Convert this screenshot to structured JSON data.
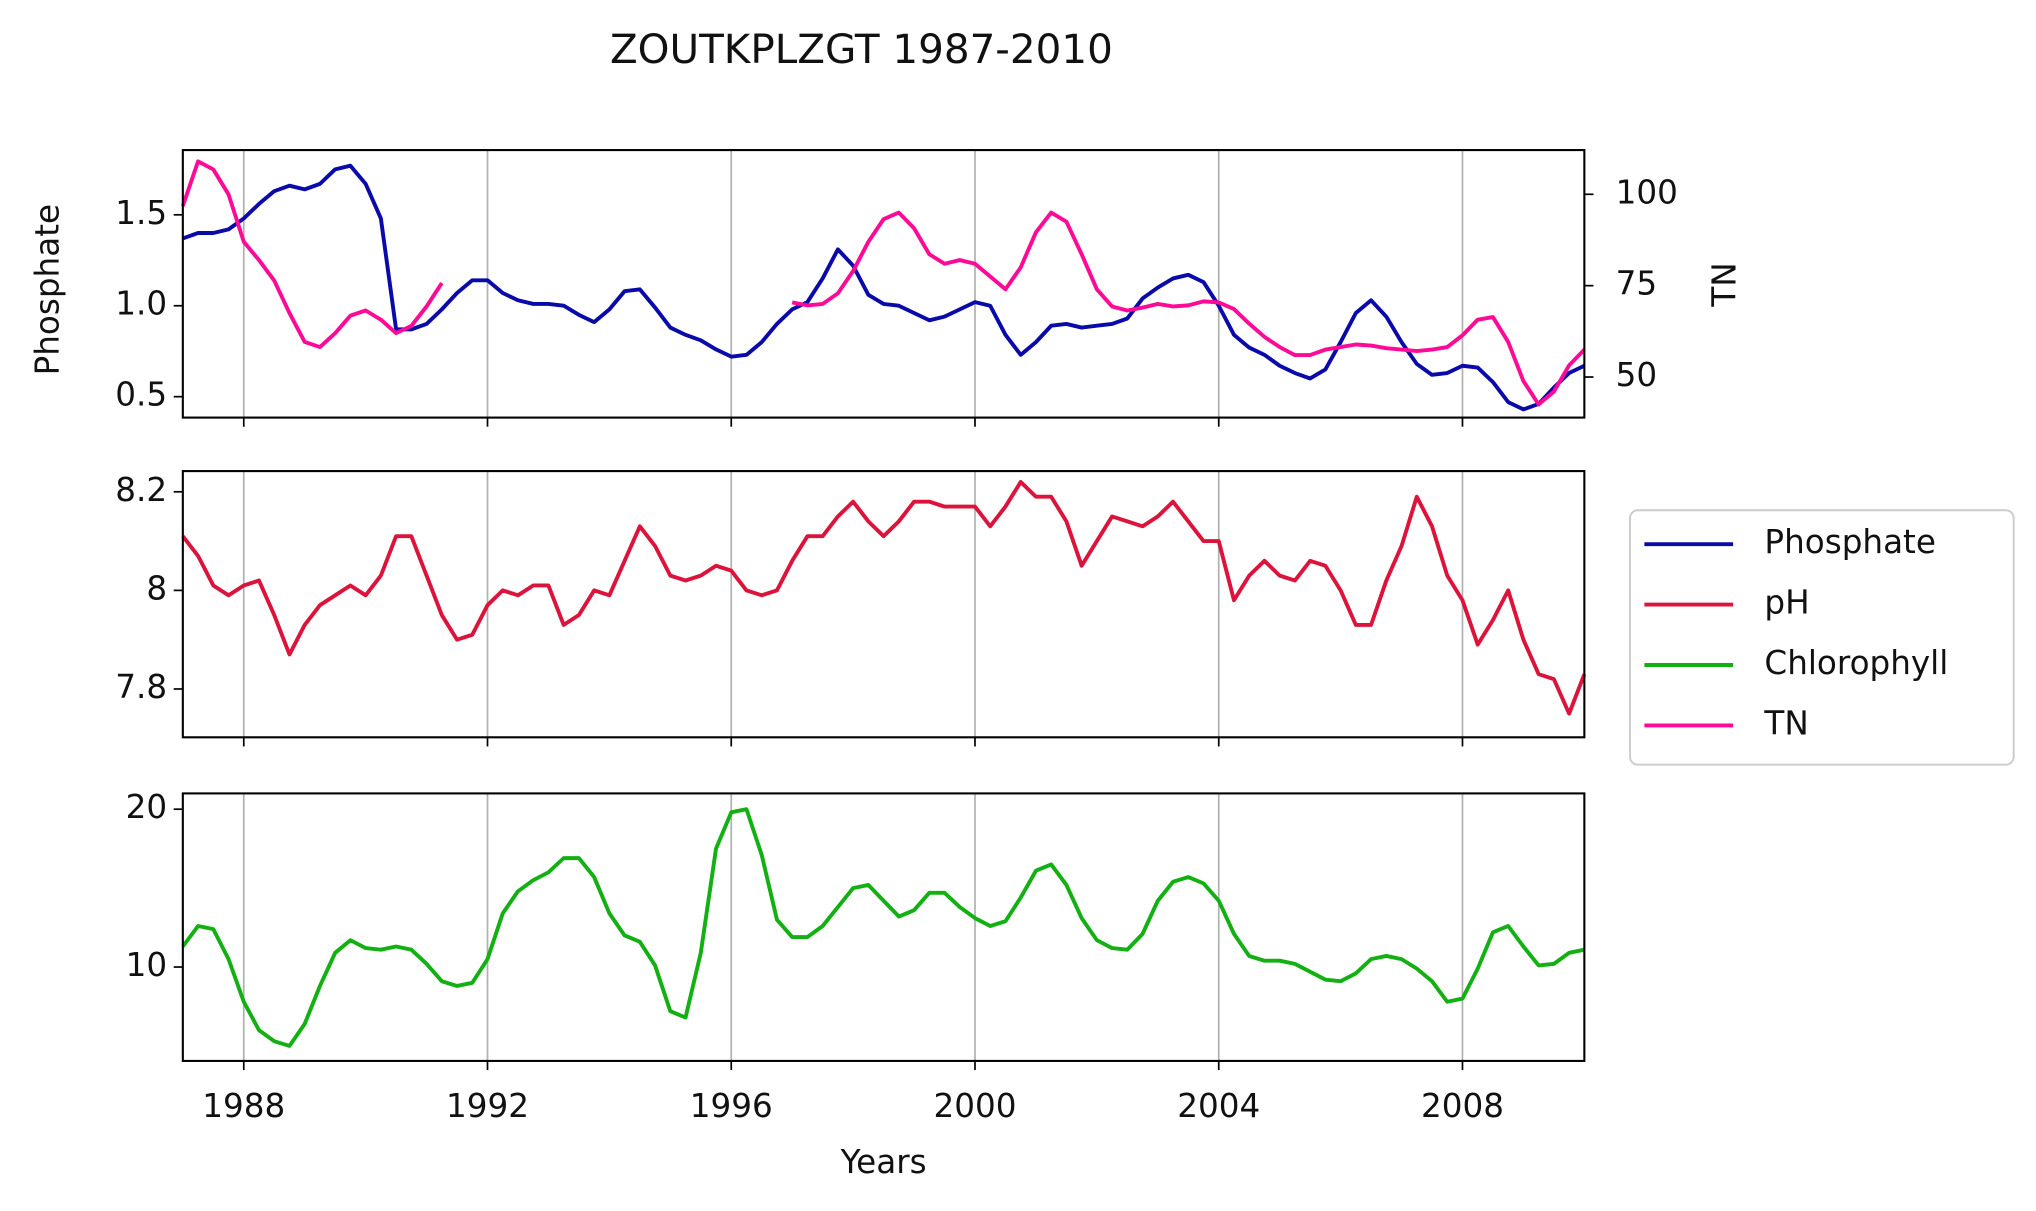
{
  "chart_data": [
    {
      "type": "line",
      "title": "ZOUTKPLZGT 1987-2010",
      "ylabel": "Phosphate",
      "y2label": "TN",
      "x": [
        1987,
        1987.25,
        1987.5,
        1987.75,
        1988,
        1988.25,
        1988.5,
        1988.75,
        1989,
        1989.25,
        1989.5,
        1989.75,
        1990,
        1990.25,
        1990.5,
        1990.75,
        1991,
        1991.25,
        1991.5,
        1991.75,
        1992,
        1992.25,
        1992.5,
        1992.75,
        1993,
        1993.25,
        1993.5,
        1993.75,
        1994,
        1994.25,
        1994.5,
        1994.75,
        1995,
        1995.25,
        1995.5,
        1995.75,
        1996,
        1996.25,
        1996.5,
        1996.75,
        1997,
        1997.25,
        1997.5,
        1997.75,
        1998,
        1998.25,
        1998.5,
        1998.75,
        1999,
        1999.25,
        1999.5,
        1999.75,
        2000,
        2000.25,
        2000.5,
        2000.75,
        2001,
        2001.25,
        2001.5,
        2001.75,
        2002,
        2002.25,
        2002.5,
        2002.75,
        2003,
        2003.25,
        2003.5,
        2003.75,
        2004,
        2004.25,
        2004.5,
        2004.75,
        2005,
        2005.25,
        2005.5,
        2005.75,
        2006,
        2006.25,
        2006.5,
        2006.75,
        2007,
        2007.25,
        2007.5,
        2007.75,
        2008,
        2008.25,
        2008.5,
        2008.75,
        2009,
        2009.25,
        2009.5,
        2009.75,
        2010
      ],
      "series": [
        {
          "name": "Phosphate",
          "color": "#0a0aaa",
          "values": [
            1.37,
            1.4,
            1.4,
            1.42,
            1.48,
            1.56,
            1.63,
            1.66,
            1.64,
            1.67,
            1.75,
            1.77,
            1.67,
            1.48,
            0.87,
            0.87,
            0.9,
            0.98,
            1.07,
            1.14,
            1.14,
            1.07,
            1.03,
            1.01,
            1.01,
            1.0,
            0.95,
            0.91,
            0.98,
            1.08,
            1.09,
            0.99,
            0.88,
            0.84,
            0.81,
            0.76,
            0.72,
            0.73,
            0.8,
            0.9,
            0.98,
            1.02,
            1.15,
            1.31,
            1.22,
            1.06,
            1.01,
            1.0,
            0.96,
            0.92,
            0.94,
            0.98,
            1.02,
            1.0,
            0.84,
            0.73,
            0.8,
            0.89,
            0.9,
            0.88,
            0.89,
            0.9,
            0.93,
            1.04,
            1.1,
            1.15,
            1.17,
            1.13,
            1.0,
            0.84,
            0.77,
            0.73,
            0.67,
            0.63,
            0.6,
            0.65,
            0.8,
            0.96,
            1.03,
            0.94,
            0.8,
            0.68,
            0.62,
            0.63,
            0.67,
            0.66,
            0.58,
            0.47,
            0.43,
            0.46,
            0.55,
            0.63,
            0.67
          ]
        },
        {
          "name": "TN",
          "color": "#ff0a96",
          "axis": "y2",
          "values": [
            96.8,
            109,
            106.8,
            100,
            87,
            82,
            76.4,
            67.5,
            59.6,
            58.2,
            62,
            66.8,
            68.2,
            65.7,
            62,
            64,
            69.3,
            75.7,
            null,
            null,
            null,
            null,
            null,
            null,
            null,
            null,
            null,
            null,
            null,
            null,
            null,
            null,
            null,
            null,
            null,
            null,
            null,
            null,
            null,
            null,
            70.4,
            69.6,
            70,
            72.9,
            79,
            87,
            93.2,
            95,
            90.7,
            83.6,
            81,
            82,
            81,
            77.5,
            74,
            80,
            89.6,
            95,
            92.5,
            83.6,
            74,
            69.3,
            68.2,
            69,
            70,
            69.3,
            69.6,
            70.7,
            70.4,
            68.6,
            64.6,
            61,
            58.2,
            56,
            56,
            57.5,
            58.2,
            58.9,
            58.6,
            57.9,
            57.5,
            57.1,
            57.5,
            58.2,
            61.4,
            65.7,
            66.4,
            59.6,
            48.9,
            42.5,
            46,
            53.2,
            57.5
          ]
        }
      ],
      "xlim": [
        1987,
        2010
      ],
      "xticks": [
        1988,
        1992,
        1996,
        2000,
        2004,
        2008
      ],
      "ylim": [
        0.385,
        1.856
      ],
      "yticks": [
        0.5,
        1.0,
        1.5
      ],
      "y2lim": [
        38.9,
        112.1
      ],
      "y2ticks": [
        50,
        75,
        100
      ],
      "grid": "x"
    },
    {
      "type": "line",
      "x": [
        1987,
        1987.25,
        1987.5,
        1987.75,
        1988,
        1988.25,
        1988.5,
        1988.75,
        1989,
        1989.25,
        1989.5,
        1989.75,
        1990,
        1990.25,
        1990.5,
        1990.75,
        1991,
        1991.25,
        1991.5,
        1991.75,
        1992,
        1992.25,
        1992.5,
        1992.75,
        1993,
        1993.25,
        1993.5,
        1993.75,
        1994,
        1994.25,
        1994.5,
        1994.75,
        1995,
        1995.25,
        1995.5,
        1995.75,
        1996,
        1996.25,
        1996.5,
        1996.75,
        1997,
        1997.25,
        1997.5,
        1997.75,
        1998,
        1998.25,
        1998.5,
        1998.75,
        1999,
        1999.25,
        1999.5,
        1999.75,
        2000,
        2000.25,
        2000.5,
        2000.75,
        2001,
        2001.25,
        2001.5,
        2001.75,
        2002,
        2002.25,
        2002.5,
        2002.75,
        2003,
        2003.25,
        2003.5,
        2003.75,
        2004,
        2004.25,
        2004.5,
        2004.75,
        2005,
        2005.25,
        2005.5,
        2005.75,
        2006,
        2006.25,
        2006.5,
        2006.75,
        2007,
        2007.25,
        2007.5,
        2007.75,
        2008,
        2008.25,
        2008.5,
        2008.75,
        2009,
        2009.25,
        2009.5,
        2009.75,
        2010
      ],
      "series": [
        {
          "name": "pH",
          "color": "#dc143c",
          "values": [
            8.11,
            8.07,
            8.01,
            7.99,
            8.01,
            8.02,
            7.95,
            7.87,
            7.93,
            7.97,
            7.99,
            8.01,
            7.99,
            8.03,
            8.11,
            8.11,
            8.03,
            7.95,
            7.9,
            7.91,
            7.97,
            8.0,
            7.99,
            8.01,
            8.01,
            7.93,
            7.95,
            8.0,
            7.99,
            8.06,
            8.13,
            8.09,
            8.03,
            8.02,
            8.03,
            8.05,
            8.04,
            8.0,
            7.99,
            8.0,
            8.06,
            8.11,
            8.11,
            8.15,
            8.18,
            8.14,
            8.11,
            8.14,
            8.18,
            8.18,
            8.17,
            8.17,
            8.17,
            8.13,
            8.17,
            8.22,
            8.19,
            8.19,
            8.14,
            8.05,
            8.1,
            8.15,
            8.14,
            8.13,
            8.15,
            8.18,
            8.14,
            8.1,
            8.1,
            7.98,
            8.03,
            8.06,
            8.03,
            8.02,
            8.06,
            8.05,
            8.0,
            7.93,
            7.93,
            8.02,
            8.09,
            8.19,
            8.13,
            8.03,
            7.98,
            7.89,
            7.94,
            8.0,
            7.9,
            7.83,
            7.82,
            7.75,
            7.83
          ]
        }
      ],
      "xlim": [
        1987,
        2010
      ],
      "xticks": [
        1988,
        1992,
        1996,
        2000,
        2004,
        2008
      ],
      "ylim": [
        7.702,
        8.242
      ],
      "yticks": [
        7.8,
        8.0,
        8.2
      ],
      "grid": "x"
    },
    {
      "type": "line",
      "xlabel": "Years",
      "x": [
        1987,
        1987.25,
        1987.5,
        1987.75,
        1988,
        1988.25,
        1988.5,
        1988.75,
        1989,
        1989.25,
        1989.5,
        1989.75,
        1990,
        1990.25,
        1990.5,
        1990.75,
        1991,
        1991.25,
        1991.5,
        1991.75,
        1992,
        1992.25,
        1992.5,
        1992.75,
        1993,
        1993.25,
        1993.5,
        1993.75,
        1994,
        1994.25,
        1994.5,
        1994.75,
        1995,
        1995.25,
        1995.5,
        1995.75,
        1996,
        1996.25,
        1996.5,
        1996.75,
        1997,
        1997.25,
        1997.5,
        1997.75,
        1998,
        1998.25,
        1998.5,
        1998.75,
        1999,
        1999.25,
        1999.5,
        1999.75,
        2000,
        2000.25,
        2000.5,
        2000.75,
        2001,
        2001.25,
        2001.5,
        2001.75,
        2002,
        2002.25,
        2002.5,
        2002.75,
        2003,
        2003.25,
        2003.5,
        2003.75,
        2004,
        2004.25,
        2004.5,
        2004.75,
        2005,
        2005.25,
        2005.5,
        2005.75,
        2006,
        2006.25,
        2006.5,
        2006.75,
        2007,
        2007.25,
        2007.5,
        2007.75,
        2008,
        2008.25,
        2008.5,
        2008.75,
        2009,
        2009.25,
        2009.5,
        2009.75,
        2010
      ],
      "series": [
        {
          "name": "Chlorophyll",
          "color": "#12b012",
          "values": [
            11.3,
            12.6,
            12.4,
            10.5,
            7.8,
            6.0,
            5.3,
            5.0,
            6.4,
            8.8,
            10.9,
            11.7,
            11.2,
            11.1,
            11.3,
            11.1,
            10.2,
            9.1,
            8.8,
            9.0,
            10.5,
            13.4,
            14.8,
            15.5,
            16.0,
            16.9,
            16.9,
            15.7,
            13.4,
            12.0,
            11.6,
            10.1,
            7.2,
            6.8,
            10.9,
            17.5,
            19.8,
            20.0,
            17.1,
            13.0,
            11.9,
            11.9,
            12.6,
            13.8,
            15.0,
            15.2,
            14.2,
            13.2,
            13.6,
            14.7,
            14.7,
            13.8,
            13.1,
            12.6,
            12.9,
            14.4,
            16.1,
            16.5,
            15.2,
            13.1,
            11.7,
            11.2,
            11.1,
            12.1,
            14.2,
            15.4,
            15.7,
            15.3,
            14.2,
            12.1,
            10.7,
            10.4,
            10.4,
            10.2,
            9.7,
            9.2,
            9.1,
            9.6,
            10.5,
            10.7,
            10.5,
            9.9,
            9.1,
            7.8,
            8.0,
            9.9,
            12.2,
            12.6,
            11.3,
            10.1,
            10.2,
            10.9,
            11.1
          ]
        }
      ],
      "xlim": [
        1987,
        2010
      ],
      "xticks": [
        1988,
        1992,
        1996,
        2000,
        2004,
        2008
      ],
      "ylim": [
        4.05,
        21.0
      ],
      "yticks": [
        10,
        20
      ],
      "grid": "x"
    }
  ]
}
